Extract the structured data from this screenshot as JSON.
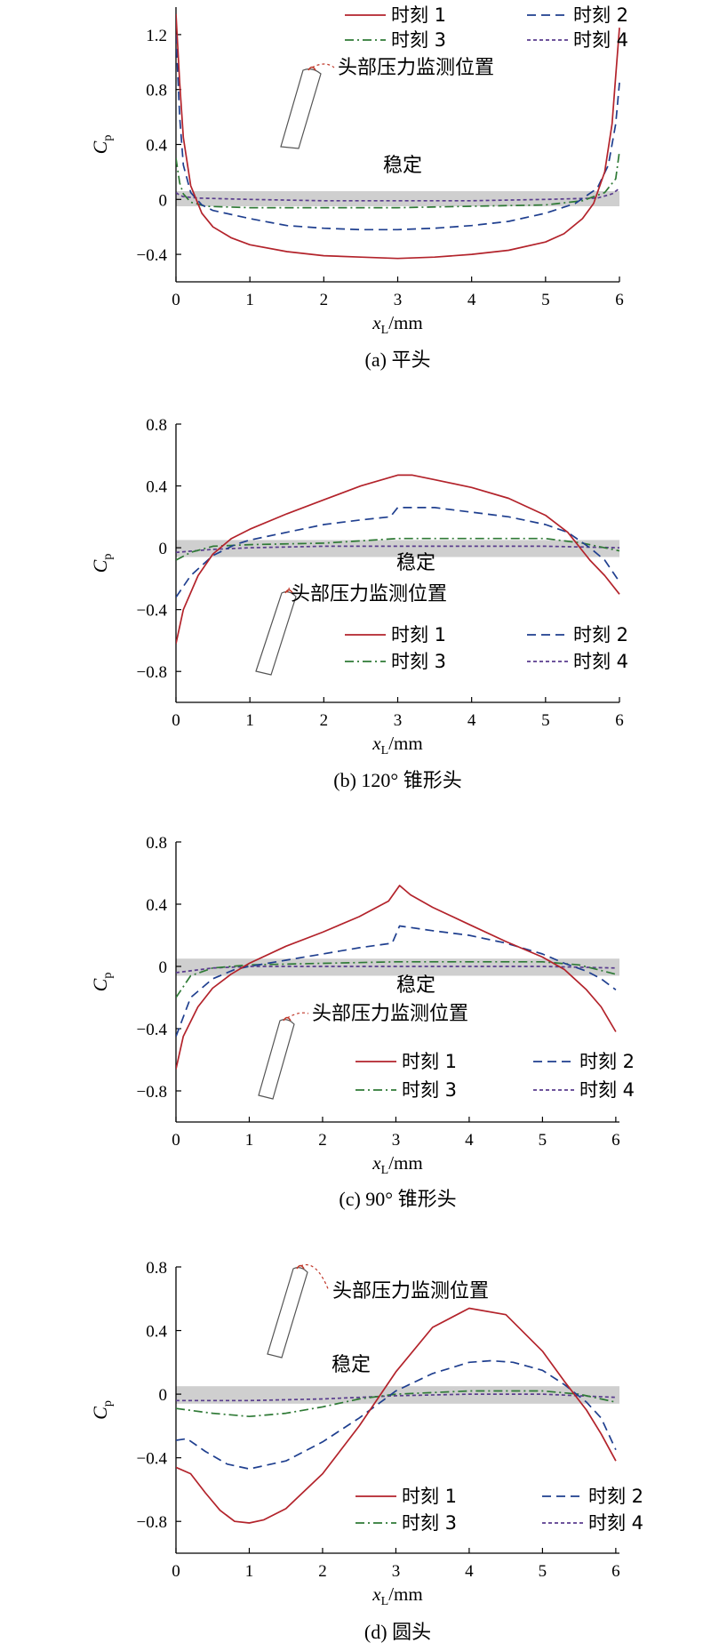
{
  "chart_data": [
    {
      "type": "line",
      "caption": "(a) 平头",
      "xlabel": "x_L/mm",
      "ylabel": "C_p",
      "xlim": [
        0,
        6
      ],
      "ylim": [
        -0.6,
        1.4
      ],
      "xticks": [
        0,
        1,
        2,
        3,
        4,
        5,
        6
      ],
      "yticks": [
        -0.4,
        0,
        0.4,
        0.8,
        1.2
      ],
      "ytick_labels": [
        "−0.4",
        "0",
        "0.4",
        "0.8",
        "1.2"
      ],
      "band": {
        "y0": -0.05,
        "y1": 0.06,
        "label": "稳定"
      },
      "annotation": "头部压力监测位置",
      "legend_position": "top-right",
      "series": [
        {
          "name": "时刻 1",
          "x": [
            0,
            0.05,
            0.1,
            0.2,
            0.35,
            0.5,
            0.75,
            1,
            1.5,
            2,
            2.5,
            3,
            3.5,
            4,
            4.5,
            5,
            5.25,
            5.5,
            5.65,
            5.8,
            5.9,
            5.95,
            6
          ],
          "y": [
            1.35,
            0.85,
            0.45,
            0.1,
            -0.1,
            -0.2,
            -0.28,
            -0.33,
            -0.38,
            -0.41,
            -0.42,
            -0.43,
            -0.42,
            -0.4,
            -0.37,
            -0.31,
            -0.25,
            -0.14,
            -0.03,
            0.2,
            0.55,
            0.9,
            1.25
          ]
        },
        {
          "name": "时刻 2",
          "x": [
            0,
            0.05,
            0.1,
            0.2,
            0.35,
            0.5,
            1,
            1.5,
            2,
            2.5,
            3,
            3.5,
            4,
            4.5,
            5,
            5.4,
            5.7,
            5.85,
            5.95,
            6
          ],
          "y": [
            1.2,
            0.6,
            0.25,
            0.05,
            -0.04,
            -0.08,
            -0.14,
            -0.19,
            -0.21,
            -0.22,
            -0.22,
            -0.21,
            -0.19,
            -0.16,
            -0.1,
            -0.03,
            0.08,
            0.25,
            0.55,
            0.85
          ]
        },
        {
          "name": "时刻 3",
          "x": [
            0,
            0.05,
            0.1,
            0.2,
            0.4,
            1,
            2,
            3,
            4,
            5,
            5.5,
            5.8,
            5.95,
            6
          ],
          "y": [
            0.3,
            0.12,
            0.04,
            -0.02,
            -0.05,
            -0.06,
            -0.06,
            -0.06,
            -0.05,
            -0.04,
            -0.01,
            0.05,
            0.15,
            0.35
          ]
        },
        {
          "name": "时刻 4",
          "x": [
            0,
            0.05,
            0.1,
            0.3,
            1,
            2,
            3,
            4,
            5,
            5.7,
            5.9,
            6
          ],
          "y": [
            0.05,
            0.03,
            0.02,
            0.01,
            0,
            -0.01,
            -0.01,
            -0.01,
            0,
            0.01,
            0.04,
            0.08
          ]
        }
      ]
    },
    {
      "type": "line",
      "caption": "(b) 120° 锥形头",
      "xlabel": "x_L/mm",
      "ylabel": "C_p",
      "xlim": [
        0,
        6
      ],
      "ylim": [
        -1.0,
        0.8
      ],
      "xticks": [
        0,
        1,
        2,
        3,
        4,
        5,
        6
      ],
      "yticks": [
        -0.8,
        -0.4,
        0,
        0.4,
        0.8
      ],
      "ytick_labels": [
        "−0.8",
        "−0.4",
        "0",
        "0.4",
        "0.8"
      ],
      "band": {
        "y0": -0.06,
        "y1": 0.05,
        "label": "稳定"
      },
      "annotation": "头部压力监测位置",
      "legend_position": "bottom-right",
      "series": [
        {
          "name": "时刻 1",
          "x": [
            0,
            0.1,
            0.3,
            0.5,
            0.75,
            1,
            1.5,
            2,
            2.5,
            3,
            3.2,
            3.5,
            4,
            4.5,
            5,
            5.3,
            5.6,
            5.8,
            6
          ],
          "y": [
            -0.62,
            -0.4,
            -0.18,
            -0.04,
            0.06,
            0.12,
            0.22,
            0.31,
            0.4,
            0.47,
            0.47,
            0.44,
            0.39,
            0.32,
            0.21,
            0.1,
            -0.08,
            -0.18,
            -0.3
          ]
        },
        {
          "name": "时刻 2",
          "x": [
            0,
            0.2,
            0.5,
            0.8,
            1,
            1.5,
            2,
            2.5,
            2.9,
            3,
            3.5,
            4,
            4.5,
            5,
            5.3,
            5.6,
            5.8,
            6
          ],
          "y": [
            -0.32,
            -0.18,
            -0.05,
            0.02,
            0.05,
            0.1,
            0.15,
            0.18,
            0.2,
            0.26,
            0.26,
            0.23,
            0.2,
            0.15,
            0.1,
            0.0,
            -0.08,
            -0.22
          ]
        },
        {
          "name": "时刻 3",
          "x": [
            0,
            0.2,
            0.5,
            1,
            2,
            3,
            4,
            5,
            5.5,
            6
          ],
          "y": [
            -0.08,
            -0.03,
            0.01,
            0.02,
            0.03,
            0.06,
            0.06,
            0.06,
            0.03,
            -0.02
          ]
        },
        {
          "name": "时刻 4",
          "x": [
            0,
            0.5,
            1,
            2,
            3,
            4,
            5,
            6
          ],
          "y": [
            -0.03,
            -0.01,
            0,
            0.01,
            0.01,
            0.01,
            0.01,
            0.0
          ]
        }
      ]
    },
    {
      "type": "line",
      "caption": "(c) 90° 锥形头",
      "xlabel": "x_L/mm",
      "ylabel": "C_p",
      "xlim": [
        0,
        6.05
      ],
      "ylim": [
        -1.0,
        0.8
      ],
      "xticks": [
        0,
        1,
        2,
        3,
        4,
        5,
        6
      ],
      "yticks": [
        -0.8,
        -0.4,
        0,
        0.4,
        0.8
      ],
      "ytick_labels": [
        "−0.8",
        "−0.4",
        "0",
        "0.4",
        "0.8"
      ],
      "band": {
        "y0": -0.06,
        "y1": 0.05,
        "label": "稳定"
      },
      "annotation": "头部压力监测位置",
      "legend_position": "bottom-right",
      "series": [
        {
          "name": "时刻 1",
          "x": [
            0,
            0.1,
            0.3,
            0.5,
            0.75,
            1,
            1.5,
            2,
            2.5,
            2.9,
            3.05,
            3.2,
            3.5,
            4,
            4.5,
            5,
            5.3,
            5.6,
            5.8,
            6
          ],
          "y": [
            -0.66,
            -0.45,
            -0.26,
            -0.14,
            -0.05,
            0.02,
            0.13,
            0.22,
            0.32,
            0.42,
            0.52,
            0.46,
            0.38,
            0.27,
            0.16,
            0.06,
            -0.02,
            -0.15,
            -0.26,
            -0.42
          ]
        },
        {
          "name": "时刻 2",
          "x": [
            0,
            0.2,
            0.5,
            0.8,
            1,
            1.5,
            2,
            2.5,
            2.95,
            3.05,
            3.5,
            4,
            4.5,
            5,
            5.3,
            5.6,
            5.8,
            6
          ],
          "y": [
            -0.45,
            -0.2,
            -0.08,
            -0.02,
            0.0,
            0.04,
            0.08,
            0.12,
            0.15,
            0.26,
            0.23,
            0.2,
            0.15,
            0.08,
            0.02,
            -0.03,
            -0.08,
            -0.15
          ]
        },
        {
          "name": "时刻 3",
          "x": [
            0,
            0.2,
            0.5,
            1,
            2,
            3,
            4,
            5,
            5.5,
            6
          ],
          "y": [
            -0.2,
            -0.06,
            -0.01,
            0.01,
            0.02,
            0.03,
            0.03,
            0.03,
            0.01,
            -0.05
          ]
        },
        {
          "name": "时刻 4",
          "x": [
            0,
            0.5,
            1,
            2,
            3,
            4,
            5,
            6
          ],
          "y": [
            -0.04,
            -0.01,
            0.0,
            0.0,
            0.0,
            0.0,
            0.0,
            -0.01
          ]
        }
      ]
    },
    {
      "type": "line",
      "caption": "(d) 圆头",
      "xlabel": "x_L/mm",
      "ylabel": "C_p",
      "xlim": [
        0,
        6.05
      ],
      "ylim": [
        -1.0,
        0.8
      ],
      "xticks": [
        0,
        1,
        2,
        3,
        4,
        5,
        6
      ],
      "yticks": [
        -0.8,
        -0.4,
        0,
        0.4,
        0.8
      ],
      "ytick_labels": [
        "−0.8",
        "−0.4",
        "0",
        "0.4",
        "0.8"
      ],
      "band": {
        "y0": -0.06,
        "y1": 0.05,
        "label": "稳定"
      },
      "annotation": "头部压力监测位置",
      "legend_position": "bottom-right",
      "series": [
        {
          "name": "时刻 1",
          "x": [
            0,
            0.2,
            0.4,
            0.6,
            0.8,
            1,
            1.2,
            1.5,
            2,
            2.5,
            3,
            3.5,
            4,
            4.5,
            5,
            5.3,
            5.6,
            5.8,
            6
          ],
          "y": [
            -0.46,
            -0.5,
            -0.62,
            -0.73,
            -0.8,
            -0.81,
            -0.79,
            -0.72,
            -0.5,
            -0.2,
            0.14,
            0.42,
            0.54,
            0.5,
            0.27,
            0.08,
            -0.1,
            -0.25,
            -0.42
          ]
        },
        {
          "name": "时刻 2",
          "x": [
            0,
            0.15,
            0.4,
            0.7,
            1,
            1.5,
            2,
            2.5,
            3,
            3.5,
            4,
            4.3,
            4.6,
            5,
            5.3,
            5.6,
            5.8,
            6
          ],
          "y": [
            -0.29,
            -0.28,
            -0.36,
            -0.44,
            -0.47,
            -0.42,
            -0.3,
            -0.15,
            0.02,
            0.13,
            0.2,
            0.21,
            0.2,
            0.15,
            0.06,
            -0.05,
            -0.15,
            -0.35
          ]
        },
        {
          "name": "时刻 3",
          "x": [
            0,
            0.5,
            1,
            1.5,
            2,
            2.5,
            3,
            3.5,
            4,
            4.5,
            5,
            5.5,
            6
          ],
          "y": [
            -0.09,
            -0.12,
            -0.14,
            -0.12,
            -0.08,
            -0.03,
            0.0,
            0.01,
            0.02,
            0.02,
            0.02,
            0.0,
            -0.05
          ]
        },
        {
          "name": "时刻 4",
          "x": [
            0,
            1,
            2,
            3,
            4,
            5,
            6
          ],
          "y": [
            -0.04,
            -0.04,
            -0.03,
            -0.01,
            0.0,
            0.0,
            -0.02
          ]
        }
      ]
    }
  ],
  "series_styles": {
    "colors": [
      "#b3232b",
      "#1f3f8f",
      "#2f7a36",
      "#5a3d8e"
    ],
    "dashes": [
      "",
      "10 6",
      "10 4 2 4",
      "4 3"
    ]
  },
  "band_color": "#cfcfcf"
}
